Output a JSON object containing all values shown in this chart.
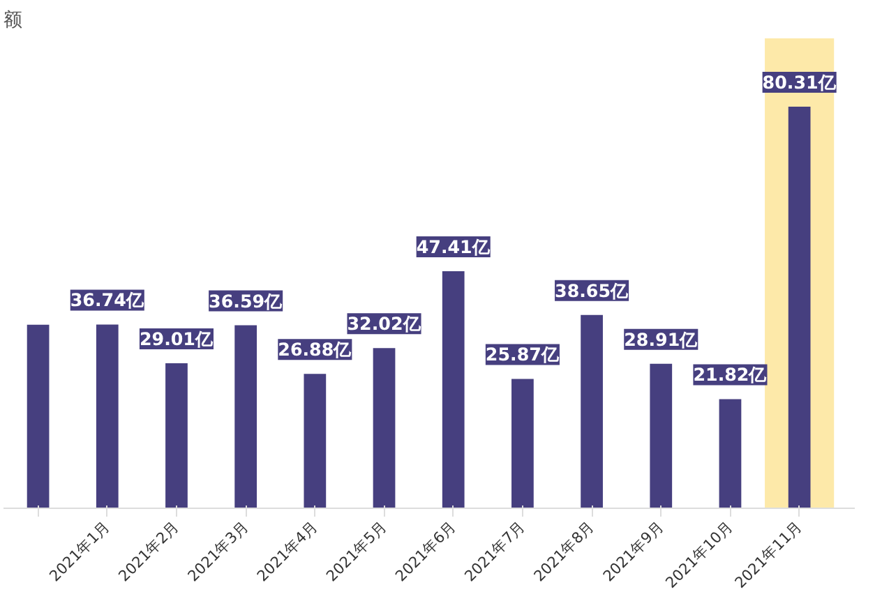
{
  "chart_data": {
    "type": "bar",
    "ylabel": "额",
    "categories": [
      null,
      "2021年1月",
      "2021年2月",
      "2021年3月",
      "2021年4月",
      "2021年5月",
      "2021年6月",
      "2021年7月",
      "2021年8月",
      "2021年9月",
      "2021年10月",
      "2021年11月"
    ],
    "values": [
      36.7,
      36.74,
      29.01,
      36.59,
      26.88,
      32.02,
      47.41,
      25.87,
      38.65,
      28.91,
      21.82,
      80.31
    ],
    "value_labels": [
      null,
      "36.74亿",
      "29.01亿",
      "36.59亿",
      "26.88亿",
      "32.02亿",
      "47.41亿",
      "25.87亿",
      "38.65亿",
      "28.91亿",
      "21.82亿",
      "80.31亿"
    ],
    "color": "#463f7f",
    "bands": [
      {
        "axis": "x",
        "from": "2021年11月",
        "to": "2021年11月",
        "color": "#fde9a9"
      }
    ],
    "grid": false,
    "tick_labels": "x"
  }
}
